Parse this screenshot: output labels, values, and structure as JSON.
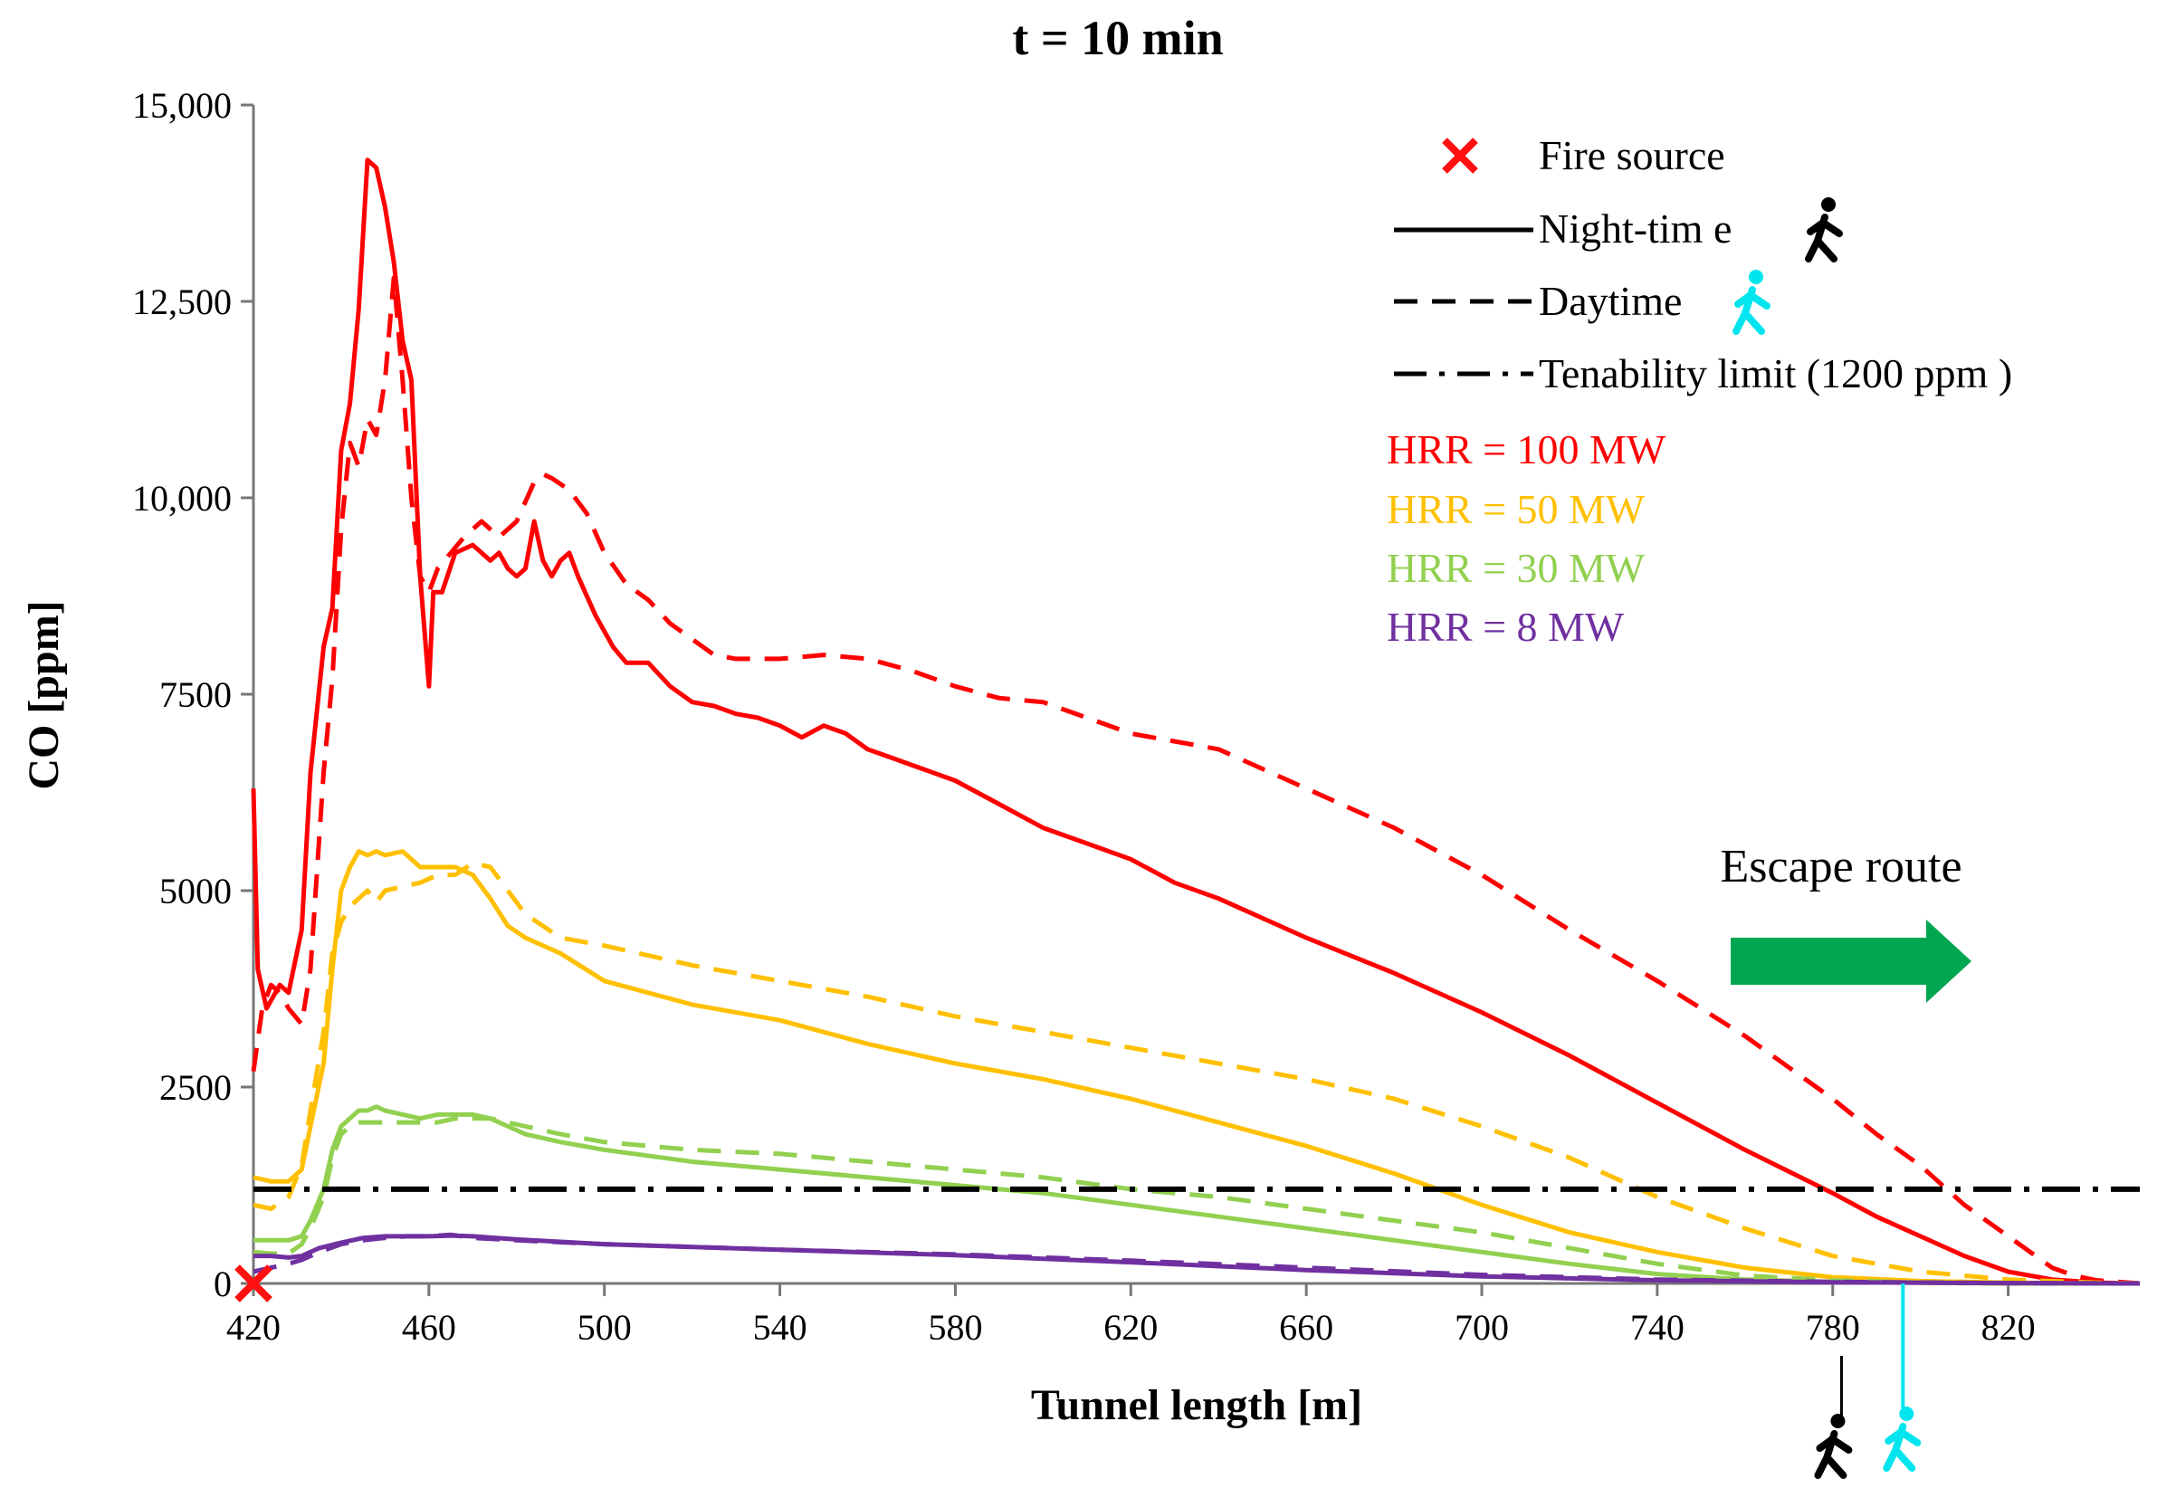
{
  "chart_data": {
    "type": "line",
    "title": "t = 10 min",
    "xlabel": "Tunnel length [m]",
    "ylabel": "CO [ppm]",
    "xlim": [
      420,
      850
    ],
    "ylim": [
      0,
      15000
    ],
    "grid": false,
    "legend_position": "top-right",
    "x_ticks": [
      420,
      460,
      500,
      540,
      580,
      620,
      660,
      700,
      740,
      780,
      820
    ],
    "x_tick_labels": [
      "420",
      "460",
      "500",
      "540",
      "580",
      "620",
      "660",
      "700",
      "740",
      "780",
      "820"
    ],
    "y_ticks": [
      0,
      2500,
      5000,
      7500,
      10000,
      12500,
      15000
    ],
    "y_tick_labels": [
      "0",
      "2500",
      "5000",
      "7500",
      "10,000",
      "12,500",
      "15,000"
    ],
    "legend": {
      "fire_source": "Fire source",
      "night": "Night-tim e",
      "day": "Daytime",
      "tenability": "Tenability limit (1200 ppm )",
      "hrr_labels": [
        "HRR = 100 MW",
        "HRR = 50 MW",
        "HRR = 30 MW",
        "HRR = 8 MW"
      ]
    },
    "annotation": "Escape route",
    "fire_source_x": 420,
    "tenability_limit": 1200,
    "evacuee_night_x": 782,
    "evacuee_day_x": 796,
    "colors": {
      "hrr100": "#ff0000",
      "hrr50": "#ffc000",
      "hrr30": "#92d050",
      "hrr8": "#7030a0",
      "limit": "#000000",
      "arrow": "#00a650",
      "night_icon": "#000000",
      "day_icon": "#00e5ee"
    },
    "series": [
      {
        "name": "HRR = 100 MW Night-time",
        "color": "#ff0000",
        "style": "solid",
        "x": [
          420,
          421,
          423,
          426,
          428,
          431,
          433,
          436,
          438,
          440,
          442,
          444,
          446,
          448,
          450,
          452,
          454,
          456,
          458,
          460,
          461,
          463,
          466,
          470,
          474,
          476,
          478,
          480,
          482,
          484,
          486,
          488,
          490,
          492,
          494,
          498,
          502,
          505,
          510,
          515,
          520,
          525,
          530,
          535,
          540,
          545,
          550,
          555,
          560,
          565,
          570,
          575,
          580,
          590,
          600,
          610,
          620,
          630,
          640,
          660,
          680,
          700,
          720,
          740,
          760,
          780,
          790,
          800,
          810,
          820,
          830,
          840,
          850
        ],
        "y": [
          6300,
          4000,
          3500,
          3800,
          3700,
          4500,
          6500,
          8100,
          8600,
          10600,
          11200,
          12400,
          14300,
          14200,
          13700,
          13000,
          12000,
          11500,
          9000,
          7600,
          8800,
          8800,
          9300,
          9400,
          9200,
          9300,
          9100,
          9000,
          9100,
          9700,
          9200,
          9000,
          9200,
          9300,
          9000,
          8500,
          8100,
          7900,
          7900,
          7600,
          7400,
          7350,
          7250,
          7200,
          7100,
          6950,
          7100,
          7000,
          6800,
          6700,
          6600,
          6500,
          6400,
          6100,
          5800,
          5600,
          5400,
          5100,
          4900,
          4400,
          3950,
          3450,
          2900,
          2300,
          1700,
          1150,
          850,
          600,
          350,
          150,
          50,
          10,
          0
        ]
      },
      {
        "name": "HRR = 100 MW Daytime",
        "color": "#ff0000",
        "style": "dashed",
        "x": [
          420,
          422,
          424,
          426,
          428,
          431,
          433,
          436,
          438,
          440,
          442,
          444,
          446,
          448,
          450,
          452,
          454,
          456,
          458,
          460,
          462,
          465,
          468,
          472,
          476,
          480,
          484,
          486,
          488,
          492,
          496,
          500,
          505,
          510,
          515,
          520,
          525,
          530,
          540,
          550,
          560,
          570,
          580,
          590,
          600,
          620,
          640,
          660,
          680,
          700,
          720,
          740,
          760,
          780,
          790,
          800,
          810,
          820,
          830,
          835,
          840,
          850
        ],
        "y": [
          2700,
          3500,
          3800,
          3700,
          3500,
          3300,
          4000,
          6500,
          7700,
          9600,
          10700,
          10400,
          11000,
          10800,
          11500,
          12800,
          11500,
          10000,
          9000,
          8800,
          9100,
          9300,
          9500,
          9700,
          9500,
          9700,
          10200,
          10300,
          10250,
          10100,
          9800,
          9300,
          8900,
          8700,
          8400,
          8200,
          8000,
          7950,
          7950,
          8000,
          7950,
          7800,
          7600,
          7450,
          7400,
          7000,
          6800,
          6300,
          5800,
          5200,
          4500,
          3850,
          3150,
          2350,
          1900,
          1500,
          1000,
          600,
          200,
          100,
          40,
          0
        ]
      },
      {
        "name": "HRR = 50 MW Night-time",
        "color": "#ffc000",
        "style": "solid",
        "x": [
          420,
          424,
          428,
          431,
          433,
          436,
          438,
          440,
          442,
          444,
          446,
          448,
          450,
          454,
          458,
          462,
          466,
          470,
          474,
          478,
          482,
          490,
          500,
          520,
          540,
          560,
          580,
          600,
          620,
          640,
          660,
          680,
          700,
          720,
          740,
          760,
          780,
          800,
          820,
          840,
          850
        ],
        "y": [
          1350,
          1300,
          1300,
          1450,
          2000,
          2800,
          4000,
          5000,
          5300,
          5500,
          5450,
          5500,
          5450,
          5500,
          5300,
          5300,
          5300,
          5200,
          4900,
          4550,
          4400,
          4200,
          3850,
          3550,
          3350,
          3050,
          2800,
          2600,
          2350,
          2050,
          1750,
          1400,
          1000,
          650,
          400,
          200,
          80,
          30,
          10,
          0,
          0
        ]
      },
      {
        "name": "HRR = 50 MW Daytime",
        "color": "#ffc000",
        "style": "dashed",
        "x": [
          420,
          424,
          428,
          431,
          433,
          436,
          438,
          440,
          442,
          444,
          446,
          448,
          450,
          454,
          458,
          462,
          466,
          470,
          474,
          478,
          482,
          490,
          500,
          520,
          540,
          560,
          580,
          600,
          620,
          640,
          660,
          680,
          700,
          720,
          740,
          760,
          780,
          800,
          820,
          840,
          850
        ],
        "y": [
          1000,
          950,
          1100,
          1500,
          2200,
          3200,
          4200,
          4600,
          4800,
          4900,
          5000,
          4850,
          5000,
          5050,
          5100,
          5200,
          5200,
          5350,
          5300,
          5000,
          4700,
          4400,
          4300,
          4050,
          3850,
          3650,
          3400,
          3200,
          3000,
          2800,
          2600,
          2350,
          2000,
          1600,
          1100,
          700,
          350,
          150,
          50,
          10,
          0
        ]
      },
      {
        "name": "HRR = 30 MW Night-time",
        "color": "#92d050",
        "style": "solid",
        "x": [
          420,
          424,
          428,
          431,
          433,
          436,
          438,
          440,
          442,
          444,
          446,
          448,
          450,
          454,
          458,
          462,
          466,
          470,
          474,
          478,
          482,
          490,
          500,
          520,
          540,
          560,
          580,
          600,
          620,
          640,
          660,
          680,
          700,
          720,
          740,
          760,
          780,
          800,
          820,
          840,
          850
        ],
        "y": [
          550,
          550,
          550,
          600,
          800,
          1200,
          1700,
          2000,
          2100,
          2200,
          2200,
          2250,
          2200,
          2150,
          2100,
          2150,
          2150,
          2150,
          2100,
          2000,
          1900,
          1800,
          1700,
          1550,
          1450,
          1350,
          1250,
          1150,
          1000,
          850,
          700,
          550,
          400,
          250,
          120,
          50,
          20,
          10,
          0,
          0,
          0
        ]
      },
      {
        "name": "HRR = 30 MW Daytime",
        "color": "#92d050",
        "style": "dashed",
        "x": [
          420,
          424,
          428,
          431,
          433,
          436,
          438,
          440,
          442,
          444,
          446,
          448,
          450,
          454,
          458,
          462,
          466,
          470,
          474,
          478,
          482,
          490,
          500,
          520,
          540,
          560,
          580,
          600,
          620,
          640,
          660,
          680,
          700,
          720,
          740,
          760,
          780,
          800,
          820,
          840,
          850
        ],
        "y": [
          400,
          380,
          380,
          500,
          700,
          1100,
          1600,
          1900,
          2000,
          2050,
          2050,
          2050,
          2050,
          2050,
          2050,
          2050,
          2100,
          2100,
          2100,
          2050,
          2000,
          1900,
          1800,
          1700,
          1650,
          1550,
          1450,
          1350,
          1200,
          1100,
          950,
          800,
          650,
          450,
          250,
          100,
          40,
          10,
          0,
          0,
          0
        ]
      },
      {
        "name": "HRR = 8 MW Night-time",
        "color": "#7030a0",
        "style": "solid",
        "x": [
          420,
          424,
          428,
          431,
          435,
          440,
          445,
          450,
          455,
          460,
          465,
          470,
          480,
          500,
          540,
          580,
          620,
          660,
          700,
          740,
          780,
          820,
          850
        ],
        "y": [
          350,
          350,
          330,
          350,
          450,
          520,
          580,
          600,
          600,
          600,
          610,
          600,
          560,
          500,
          430,
          360,
          270,
          170,
          90,
          40,
          15,
          5,
          0
        ]
      },
      {
        "name": "HRR = 8 MW Daytime",
        "color": "#7030a0",
        "style": "dashed",
        "x": [
          420,
          424,
          428,
          431,
          435,
          440,
          445,
          450,
          455,
          460,
          465,
          470,
          480,
          500,
          540,
          580,
          620,
          660,
          700,
          740,
          780,
          820,
          850
        ],
        "y": [
          150,
          200,
          250,
          300,
          400,
          500,
          550,
          580,
          600,
          600,
          620,
          580,
          550,
          500,
          430,
          370,
          290,
          200,
          110,
          50,
          20,
          5,
          0
        ]
      }
    ]
  }
}
